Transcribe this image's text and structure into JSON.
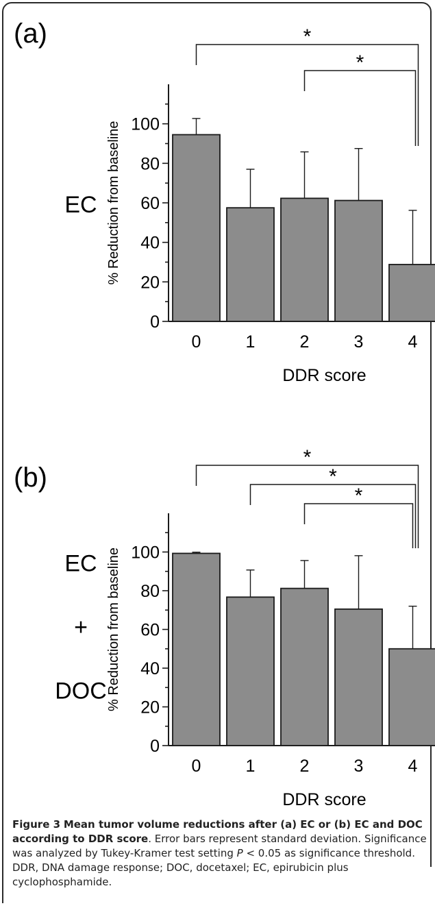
{
  "caption": {
    "label": "Figure 3",
    "title": "Mean tumor volume reductions after (a) EC or (b) EC and DOC according to DDR score",
    "body_1": ". Error bars represent standard deviation. Significance was analyzed by Tukey-Kramer test setting ",
    "p_symbol": "P",
    "body_2": " < 0.05 as significance threshold. DDR, DNA damage response; DOC, docetaxel; EC, epirubicin plus cyclophosphamide."
  },
  "colors": {
    "bar_fill": "#8c8c8c",
    "bar_stroke": "#1a1a1a",
    "axis": "#1a1a1a"
  },
  "chart_data": [
    {
      "panel_label": "(a)",
      "group_label_lines": [
        "EC"
      ],
      "type": "bar",
      "categories": [
        "0",
        "1",
        "2",
        "3",
        "4"
      ],
      "values": [
        94.5,
        57.5,
        62.3,
        61.2,
        28.8
      ],
      "error_upper": [
        102.7,
        77.0,
        85.8,
        87.5,
        56.2
      ],
      "xlabel": "DDR score",
      "ylabel": "% Reduction from baseline",
      "ylim": [
        0,
        120
      ],
      "y_ticks": [
        0,
        20,
        40,
        60,
        80,
        100
      ],
      "significance": [
        {
          "from": "0",
          "to": "4",
          "label": "*"
        },
        {
          "from": "2",
          "to": "4",
          "label": "*"
        }
      ]
    },
    {
      "panel_label": "(b)",
      "group_label_lines": [
        "EC",
        "+",
        "DOC"
      ],
      "type": "bar",
      "categories": [
        "0",
        "1",
        "2",
        "3",
        "4"
      ],
      "values": [
        99.3,
        76.7,
        81.2,
        70.5,
        50.0
      ],
      "error_upper": [
        99.9,
        90.7,
        95.6,
        98.1,
        72.0
      ],
      "xlabel": "DDR score",
      "ylabel": "% Reduction from baseline",
      "ylim": [
        0,
        120
      ],
      "y_ticks": [
        0,
        20,
        40,
        60,
        80,
        100
      ],
      "significance": [
        {
          "from": "0",
          "to": "4",
          "label": "*"
        },
        {
          "from": "1",
          "to": "4",
          "label": "*"
        },
        {
          "from": "2",
          "to": "4",
          "label": "*"
        }
      ]
    }
  ]
}
